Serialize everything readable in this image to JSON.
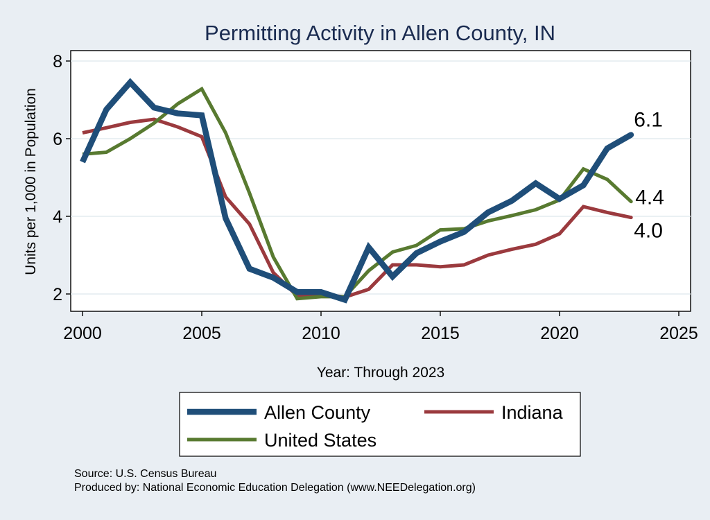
{
  "chart_data": {
    "type": "line",
    "title": "Permitting Activity in Allen County, IN",
    "xlabel": "Year: Through 2023",
    "ylabel": "Units per 1,000 in Population",
    "xlim": [
      2000,
      2025
    ],
    "ylim": [
      1.75,
      8.25
    ],
    "xticks": [
      2000,
      2005,
      2010,
      2015,
      2020,
      2025
    ],
    "yticks": [
      2,
      4,
      6,
      8
    ],
    "grid": true,
    "x": [
      2000,
      2001,
      2002,
      2003,
      2004,
      2005,
      2006,
      2007,
      2008,
      2009,
      2010,
      2011,
      2012,
      2013,
      2014,
      2015,
      2016,
      2017,
      2018,
      2019,
      2020,
      2021,
      2022,
      2023
    ],
    "series": [
      {
        "name": "Allen County",
        "color": "#1f4e79",
        "values": [
          5.4,
          6.75,
          7.45,
          6.8,
          6.65,
          6.6,
          3.95,
          2.65,
          2.42,
          2.05,
          2.05,
          1.85,
          3.2,
          2.45,
          3.05,
          3.35,
          3.6,
          4.1,
          4.4,
          4.85,
          4.45,
          4.8,
          5.75,
          6.1
        ],
        "end_label": "6.1"
      },
      {
        "name": "Indiana",
        "color": "#9b3a3e",
        "values": [
          6.15,
          6.28,
          6.42,
          6.5,
          6.3,
          6.05,
          4.5,
          3.8,
          2.55,
          1.95,
          2.0,
          1.92,
          2.12,
          2.75,
          2.75,
          2.7,
          2.75,
          3.0,
          3.15,
          3.28,
          3.55,
          4.25,
          4.1,
          3.97
        ],
        "end_label": "4.0"
      },
      {
        "name": "United States",
        "color": "#587a30",
        "values": [
          5.6,
          5.65,
          6.0,
          6.4,
          6.9,
          7.28,
          6.15,
          4.6,
          2.95,
          1.88,
          1.93,
          1.93,
          2.6,
          3.08,
          3.25,
          3.65,
          3.68,
          3.88,
          4.02,
          4.17,
          4.42,
          5.22,
          4.95,
          4.38
        ],
        "end_label": "4.4"
      }
    ],
    "legend": {
      "position": "bottom",
      "order": [
        "Allen County",
        "Indiana",
        "United States"
      ]
    }
  },
  "footer": {
    "source": "Source: U.S. Census Bureau",
    "produced_by": "Produced by: National Economic Education Delegation (www.NEEDelegation.org)"
  }
}
